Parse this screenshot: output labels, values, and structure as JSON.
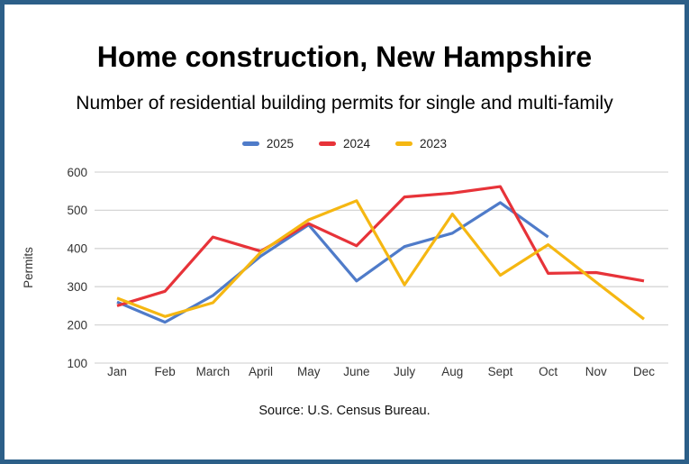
{
  "figure": {
    "title": "Home construction, New Hampshire",
    "subtitle": "Number of residential building permits for single and multi-family",
    "source": "Source: U.S. Census Bureau."
  },
  "colors": {
    "border": "#2c5f88",
    "grid": "#d6d6d6",
    "axis_text": "#333333",
    "series_2025": "#4f7bc9",
    "series_2024": "#e73339",
    "series_2023": "#f5b712"
  },
  "chart_data": {
    "type": "line",
    "title": "Home construction, New Hampshire",
    "subtitle": "Number of residential building permits for single and multi-family",
    "xlabel": "",
    "ylabel": "Permits",
    "x": [
      "Jan",
      "Feb",
      "March",
      "April",
      "May",
      "June",
      "July",
      "Aug",
      "Sept",
      "Oct",
      "Nov",
      "Dec"
    ],
    "series": [
      {
        "name": "2025",
        "color_key": "series_2025",
        "values": [
          260,
          207,
          277,
          380,
          462,
          315,
          405,
          440,
          520,
          430,
          null,
          null
        ]
      },
      {
        "name": "2024",
        "color_key": "series_2024",
        "values": [
          250,
          288,
          430,
          393,
          465,
          407,
          535,
          545,
          562,
          335,
          337,
          315
        ]
      },
      {
        "name": "2023",
        "color_key": "series_2023",
        "values": [
          270,
          222,
          258,
          390,
          475,
          525,
          305,
          490,
          330,
          410,
          312,
          215
        ]
      }
    ],
    "ylim": [
      100,
      600
    ],
    "y_ticks": [
      100,
      200,
      300,
      400,
      500,
      600
    ],
    "grid": "horizontal",
    "legend_position": "top",
    "source": "Source: U.S. Census Bureau."
  }
}
